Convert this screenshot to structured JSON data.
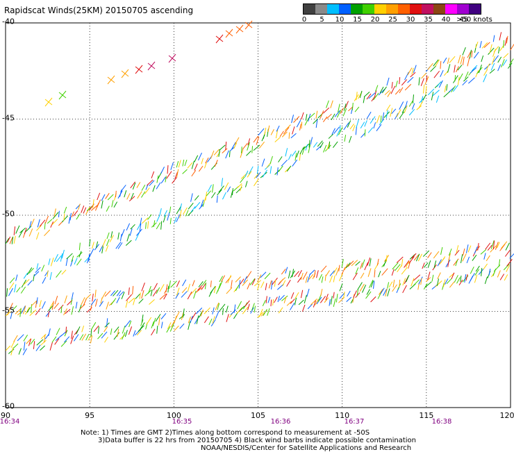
{
  "title": "Rapidscat Winds(25KM) 20150705 ascending",
  "legend": {
    "colors": [
      "#404040",
      "#8a8a8a",
      "#00bfff",
      "#0060ff",
      "#00a000",
      "#40d000",
      "#ffd000",
      "#ffa000",
      "#ff6000",
      "#e01010",
      "#c01060",
      "#8b4513",
      "#ff00ff",
      "#a000d0",
      "#400080"
    ],
    "labels": [
      "0",
      "5",
      "10",
      "15",
      "20",
      "25",
      "30",
      "35",
      "40",
      "45",
      ">50 knots"
    ]
  },
  "axes": {
    "lon_ticks": [
      "90",
      "95",
      "100",
      "105",
      "110",
      "115",
      "120"
    ],
    "lat_ticks": [
      "-40",
      "-45",
      "-50",
      "-55",
      "-60"
    ],
    "lon_range": [
      90,
      120
    ],
    "lat_range": [
      -60,
      -40
    ]
  },
  "times": [
    "16:34",
    "16:35",
    "16:36",
    "16:37",
    "16:38"
  ],
  "notes": {
    "line1": "Note: 1) Times are GMT 2)Times along bottom correspond to measurement at -50S",
    "line2": "3)Data buffer is 22 hrs from 20150705 4) Black wind barbs indicate possible contamination",
    "line3": "NOAA/NESDIS/Center for Satellite Applications and Research"
  },
  "swaths": [
    {
      "from": [
        -51.5,
        90
      ],
      "to": [
        -41,
        120
      ],
      "speed": "mixed"
    },
    {
      "from": [
        -54,
        90
      ],
      "to": [
        -42,
        120
      ],
      "speed": "mixed"
    },
    {
      "from": [
        -55.2,
        90
      ],
      "to": [
        -52,
        120
      ],
      "speed": "mixed"
    },
    {
      "from": [
        -57,
        90
      ],
      "to": [
        -53,
        120
      ],
      "speed": "mixed"
    }
  ]
}
